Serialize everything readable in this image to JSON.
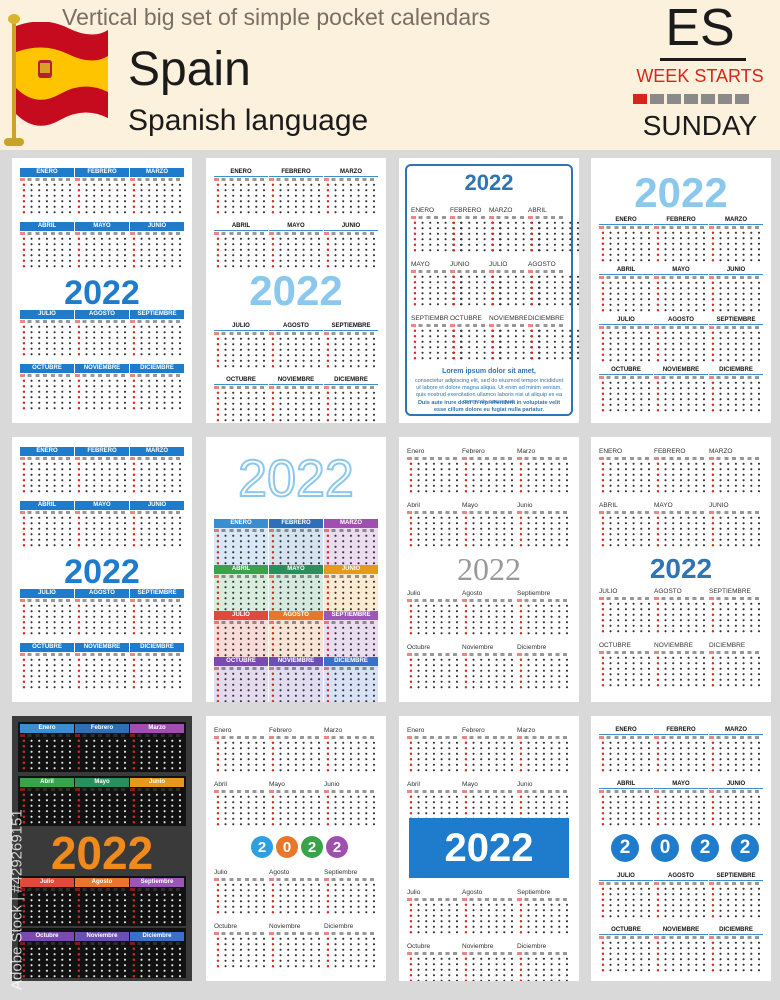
{
  "header": {
    "subtitle": "Vertical big set of simple pocket calendars",
    "country": "Spain",
    "language": "Spanish language",
    "code": "ES",
    "week_label": "WEEK STARTS",
    "start_day": "SUNDAY"
  },
  "year": "2022",
  "months_upper": [
    "ENERO",
    "FEBRERO",
    "MARZO",
    "ABRIL",
    "MAYO",
    "JUNIO",
    "JULIO",
    "AGOSTO",
    "SEPTIEMBRE",
    "OCTUBRE",
    "NOVIEMBRE",
    "DICIEMBRE"
  ],
  "months_title": [
    "Enero",
    "Febrero",
    "Marzo",
    "Abril",
    "Mayo",
    "Junio",
    "Julio",
    "Agosto",
    "Septiembre",
    "Octubre",
    "Noviembre",
    "Diciembre"
  ],
  "lorem": {
    "line1": "Lorem ipsum dolor sit amet,",
    "line2": "consectetur adipiscing elit, sed do eiusmod tempor incididunt ut labore et dolore magna aliqua. Ut enim ad minim veniam, quis nostrud exercitation ullamco laboris nisi ut aliquip ex ea commodo consequat.",
    "line3": "Duis aute irure dolor in reprehenderit in voluptate velit esse cillum dolore eu fugiat nulla pariatur."
  },
  "watermark": "Adobe Stock | #429269151",
  "colors": {
    "spain_red": "#c60b1e",
    "spain_yellow": "#ffc400",
    "blue": "#1f7ccc",
    "light_blue": "#8cc8ee",
    "rainbow": [
      "#3a8ed0",
      "#2e6fb5",
      "#a04fb0",
      "#3aa34a",
      "#2b8f5d",
      "#e59a1c",
      "#e04a3a",
      "#e8772b",
      "#9a57b8",
      "#7a4ab0",
      "#6b4fb5",
      "#3b6fc8"
    ]
  }
}
